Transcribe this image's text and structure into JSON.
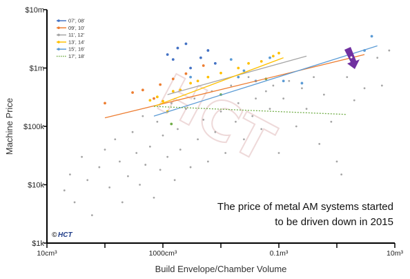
{
  "chart_data": {
    "type": "scatter",
    "xlabel": "Build Envelope/Chamber Volume",
    "ylabel": "Machine Price",
    "x_scale": "log",
    "y_scale": "log",
    "xlim_cm3": [
      10,
      10000000
    ],
    "ylim_usd": [
      1000,
      10000000
    ],
    "x_tick_labels": [
      "10cm³",
      "1000cm³",
      "0.1m³",
      "10m³"
    ],
    "x_tick_values_cm3": [
      10,
      1000,
      100000,
      10000000
    ],
    "y_tick_labels": [
      "$1k",
      "$10k",
      "$100k",
      "$1m",
      "$10m"
    ],
    "y_tick_values_usd": [
      1000,
      10000,
      100000,
      1000000,
      10000000
    ],
    "annotation": [
      "The price of metal AM systems started",
      "to be driven down in 2015"
    ],
    "watermark": "HCT",
    "copyright_symbol": "©",
    "copyright_brand": "HCT",
    "grid": false,
    "legend_position": "top-left",
    "series": [
      {
        "name": "07', 08'",
        "color": "#4472c4",
        "line_style": "solid",
        "points": [
          [
            1200,
            1700000
          ],
          [
            1500,
            1400000
          ],
          [
            1800,
            2200000
          ],
          [
            2500,
            2600000
          ],
          [
            3000,
            1000000
          ],
          [
            4500,
            1500000
          ],
          [
            6000,
            2000000
          ],
          [
            8000,
            1200000
          ]
        ]
      },
      {
        "name": "09', 10'",
        "color": "#ed7d31",
        "line_style": "solid",
        "points": [
          [
            100,
            250000
          ],
          [
            300,
            380000
          ],
          [
            450,
            420000
          ],
          [
            700,
            300000
          ],
          [
            900,
            520000
          ],
          [
            1500,
            650000
          ],
          [
            2500,
            800000
          ],
          [
            5000,
            1100000
          ]
        ],
        "trend": [
          [
            100,
            140000
          ],
          [
            3000000,
            1700000
          ]
        ]
      },
      {
        "name": "11', 12'",
        "color": "#a5a5a5",
        "line_style": "solid",
        "points": [
          [
            20,
            8000
          ],
          [
            25,
            15000
          ],
          [
            30,
            5000
          ],
          [
            40,
            30000
          ],
          [
            50,
            12000
          ],
          [
            60,
            3000
          ],
          [
            80,
            20000
          ],
          [
            100,
            40000
          ],
          [
            120,
            9000
          ],
          [
            150,
            60000
          ],
          [
            180,
            25000
          ],
          [
            200,
            5000
          ],
          [
            250,
            14000
          ],
          [
            300,
            80000
          ],
          [
            350,
            35000
          ],
          [
            400,
            10000
          ],
          [
            450,
            150000
          ],
          [
            500,
            22000
          ],
          [
            600,
            45000
          ],
          [
            700,
            6000
          ],
          [
            800,
            120000
          ],
          [
            900,
            18000
          ],
          [
            1000,
            70000
          ],
          [
            1200,
            30000
          ],
          [
            1400,
            250000
          ],
          [
            1600,
            12000
          ],
          [
            1800,
            90000
          ],
          [
            2000,
            40000
          ],
          [
            2500,
            200000
          ],
          [
            3000,
            20000
          ],
          [
            3500,
            300000
          ],
          [
            4000,
            60000
          ],
          [
            5000,
            130000
          ],
          [
            6000,
            25000
          ],
          [
            7000,
            400000
          ],
          [
            8000,
            80000
          ],
          [
            10000,
            180000
          ],
          [
            12000,
            35000
          ],
          [
            15000,
            500000
          ],
          [
            18000,
            120000
          ],
          [
            20000,
            250000
          ],
          [
            25000,
            60000
          ],
          [
            30000,
            700000
          ],
          [
            35000,
            150000
          ],
          [
            40000,
            300000
          ],
          [
            50000,
            90000
          ],
          [
            60000,
            400000
          ],
          [
            70000,
            200000
          ],
          [
            80000,
            500000
          ],
          [
            100000,
            35000
          ],
          [
            120000,
            300000
          ],
          [
            150000,
            600000
          ],
          [
            200000,
            100000
          ],
          [
            250000,
            450000
          ],
          [
            300000,
            200000
          ],
          [
            400000,
            700000
          ],
          [
            500000,
            50000
          ],
          [
            600000,
            350000
          ],
          [
            800000,
            120000
          ],
          [
            1000000,
            25000
          ],
          [
            1200000,
            15000
          ],
          [
            1500000,
            700000
          ],
          [
            2000000,
            280000
          ],
          [
            3000000,
            450000
          ],
          [
            5000000,
            1500000
          ],
          [
            6000000,
            500000
          ],
          [
            8000000,
            2000000
          ]
        ],
        "trend": [
          [
            1200,
            350000
          ],
          [
            300000,
            1600000
          ]
        ]
      },
      {
        "name": "13', 14'",
        "color": "#ffc000",
        "line_style": "solid",
        "points": [
          [
            600,
            280000
          ],
          [
            800,
            320000
          ],
          [
            1000,
            270000
          ],
          [
            1200,
            180000
          ],
          [
            1500,
            400000
          ],
          [
            2000,
            420000
          ],
          [
            3000,
            550000
          ],
          [
            4000,
            600000
          ],
          [
            6000,
            700000
          ],
          [
            10000,
            820000
          ],
          [
            20000,
            1000000
          ],
          [
            30000,
            1200000
          ],
          [
            50000,
            1300000
          ],
          [
            80000,
            1600000
          ],
          [
            100000,
            1800000
          ]
        ],
        "trend": [
          [
            700,
            220000
          ],
          [
            120000,
            1500000
          ]
        ]
      },
      {
        "name": "15', 16'",
        "color": "#5b9bd5",
        "line_style": "solid",
        "points": [
          [
            3000,
            700000
          ],
          [
            15000,
            1400000
          ],
          [
            20000,
            700000
          ],
          [
            25000,
            900000
          ],
          [
            40000,
            600000
          ],
          [
            70000,
            1500000
          ],
          [
            120000,
            600000
          ],
          [
            250000,
            550000
          ],
          [
            3000000,
            2000000
          ],
          [
            4000000,
            3500000
          ]
        ],
        "trend": [
          [
            700,
            150000
          ],
          [
            5000000,
            2400000
          ]
        ]
      },
      {
        "name": "17', 18'",
        "color": "#70ad47",
        "line_style": "dotted",
        "points": [
          [
            1400,
            110000
          ],
          [
            10000,
            350000
          ],
          [
            60000,
            650000
          ]
        ],
        "trend": [
          [
            700,
            220000
          ],
          [
            1500000,
            160000
          ]
        ]
      }
    ]
  }
}
